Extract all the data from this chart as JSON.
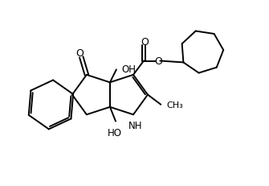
{
  "background_color": "#ffffff",
  "line_color": "#000000",
  "line_width": 1.4,
  "fig_width": 3.35,
  "fig_height": 2.32,
  "dpi": 100,
  "xlim": [
    -1,
    11
  ],
  "ylim": [
    -1,
    8
  ]
}
